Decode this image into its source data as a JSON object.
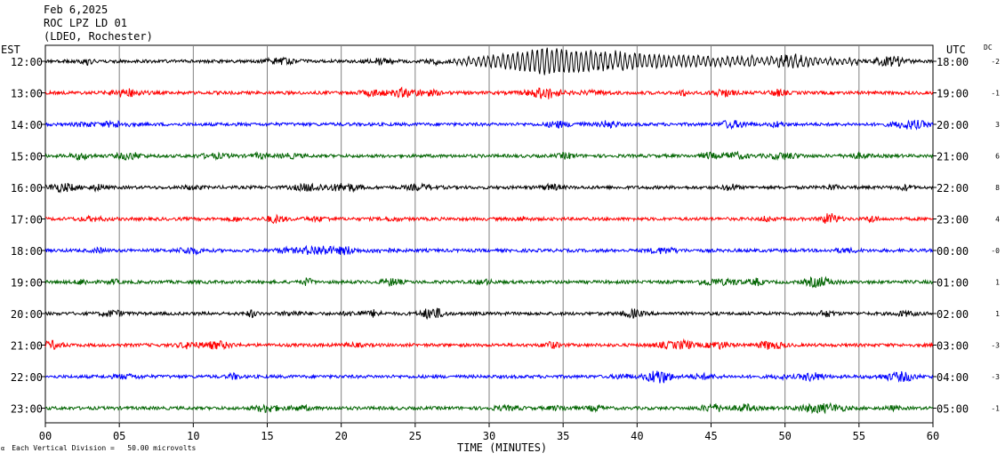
{
  "header": {
    "date": "Feb 6,2025",
    "station": "ROC LPZ LD 01",
    "network": "(LDEO, Rochester)"
  },
  "left_zone": "EST",
  "right_zone": "UTC",
  "dc_label": "DC",
  "footer": {
    "scale_note": "Each Vertical Division =   50.00 microvolts",
    "x_title": "TIME (MINUTES)"
  },
  "colors": {
    "black": "#000000",
    "red": "#ff0000",
    "blue": "#0000ff",
    "green": "#006400",
    "grid": "#808080"
  },
  "chart_data": {
    "type": "line",
    "title": "",
    "xlabel": "TIME (MINUTES)",
    "ylabel": "",
    "xlim": [
      0,
      60
    ],
    "x_ticks": [
      "00",
      "05",
      "10",
      "15",
      "20",
      "25",
      "30",
      "35",
      "40",
      "45",
      "50",
      "55",
      "60"
    ],
    "rows": [
      {
        "est": "12:00",
        "utc": "18:00",
        "dc": "-2",
        "color": "black",
        "event": {
          "start": 27.5,
          "end": 55,
          "peak": 33.5
        }
      },
      {
        "est": "13:00",
        "utc": "19:00",
        "dc": "-1",
        "color": "red"
      },
      {
        "est": "14:00",
        "utc": "20:00",
        "dc": "3",
        "color": "blue"
      },
      {
        "est": "15:00",
        "utc": "21:00",
        "dc": "6",
        "color": "green"
      },
      {
        "est": "16:00",
        "utc": "22:00",
        "dc": "8",
        "color": "black"
      },
      {
        "est": "17:00",
        "utc": "23:00",
        "dc": "4",
        "color": "red"
      },
      {
        "est": "18:00",
        "utc": "00:00",
        "dc": "-0",
        "color": "blue"
      },
      {
        "est": "19:00",
        "utc": "01:00",
        "dc": "1",
        "color": "green"
      },
      {
        "est": "20:00",
        "utc": "02:00",
        "dc": "1",
        "color": "black"
      },
      {
        "est": "21:00",
        "utc": "03:00",
        "dc": "-3",
        "color": "red"
      },
      {
        "est": "22:00",
        "utc": "04:00",
        "dc": "-3",
        "color": "blue"
      },
      {
        "est": "23:00",
        "utc": "05:00",
        "dc": "-1",
        "color": "green"
      }
    ]
  }
}
